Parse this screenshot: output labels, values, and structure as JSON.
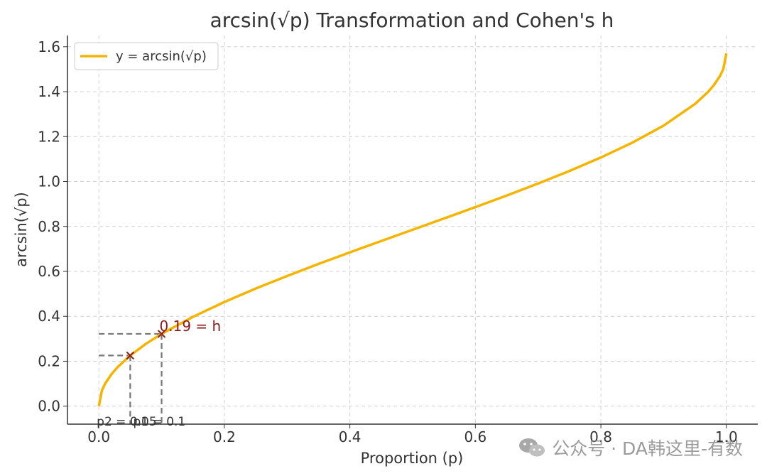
{
  "chart_data": {
    "type": "line",
    "title": "arcsin(√p) Transformation and Cohen's h",
    "xlabel": "Proportion (p)",
    "ylabel": "arcsin(√p)",
    "xlim": [
      -0.05,
      1.05
    ],
    "ylim": [
      -0.08,
      1.65
    ],
    "xticks": [
      0.0,
      0.2,
      0.4,
      0.6,
      0.8,
      1.0
    ],
    "xtick_labels": [
      "0.0",
      "0.2",
      "0.4",
      "0.6",
      "0.8",
      "1.0"
    ],
    "yticks": [
      0.0,
      0.2,
      0.4,
      0.6,
      0.8,
      1.0,
      1.2,
      1.4,
      1.6
    ],
    "ytick_labels": [
      "0.0",
      "0.2",
      "0.4",
      "0.6",
      "0.8",
      "1.0",
      "1.2",
      "1.4",
      "1.6"
    ],
    "grid": true,
    "legend_position": "top-left",
    "series": [
      {
        "name": "y = arcsin(√p)",
        "color": "#f5b400",
        "x": [
          0.0,
          0.005,
          0.01,
          0.02,
          0.03,
          0.05,
          0.075,
          0.1,
          0.15,
          0.2,
          0.25,
          0.3,
          0.35,
          0.4,
          0.45,
          0.5,
          0.55,
          0.6,
          0.65,
          0.7,
          0.75,
          0.8,
          0.85,
          0.9,
          0.95,
          0.97,
          0.98,
          0.99,
          0.995,
          1.0
        ],
        "y": [
          0.0,
          0.0708,
          0.1002,
          0.1419,
          0.1741,
          0.2255,
          0.2776,
          0.3218,
          0.3977,
          0.4636,
          0.5236,
          0.5796,
          0.6331,
          0.6847,
          0.7353,
          0.7854,
          0.8355,
          0.8861,
          0.9377,
          0.9912,
          1.0472,
          1.1071,
          1.1731,
          1.249,
          1.3453,
          1.3967,
          1.4289,
          1.4706,
          1.5,
          1.5708
        ]
      }
    ],
    "points": [
      {
        "x": 0.05,
        "y": 0.2255,
        "marker": "x",
        "color": "#8b1a1a"
      },
      {
        "x": 0.1,
        "y": 0.3218,
        "marker": "x",
        "color": "#8b1a1a"
      }
    ],
    "annotations": {
      "h_label": "0.19 = h",
      "p2_label": "p2 = 0.05",
      "p1_label": "p1 = 0.1"
    }
  },
  "watermark": {
    "icon": "wechat-icon",
    "text": "公众号 · DA韩这里-有数"
  }
}
